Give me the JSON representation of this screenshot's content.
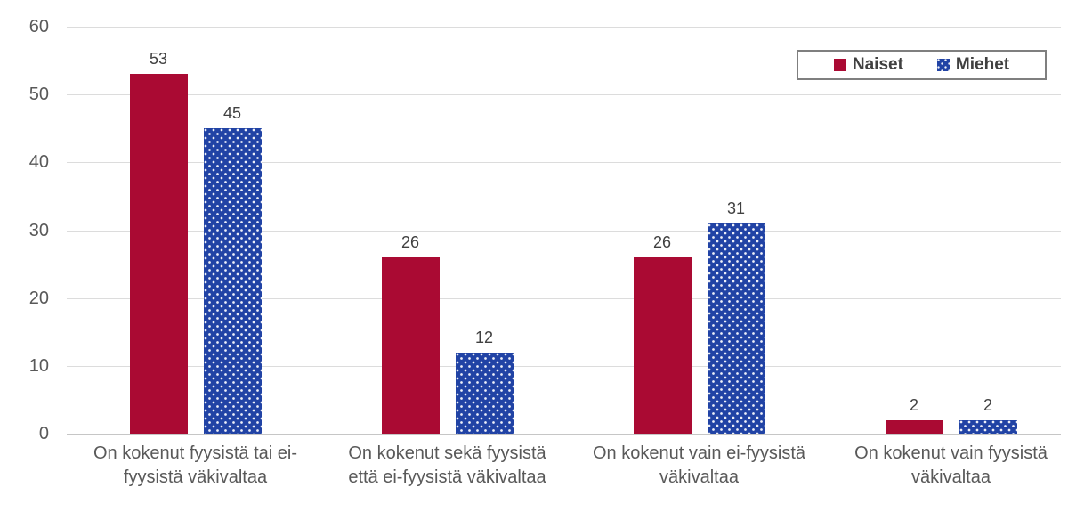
{
  "chart_data": {
    "type": "bar",
    "title": "",
    "xlabel": "",
    "ylabel": "",
    "ylim": [
      0,
      60
    ],
    "yticks": [
      0,
      10,
      20,
      30,
      40,
      50,
      60
    ],
    "grid": true,
    "legend_position": "top-right",
    "categories": [
      [
        "On kokenut fyysistä tai ei-",
        "fyysistä väkivaltaa"
      ],
      [
        "On kokenut sekä fyysistä",
        "että ei-fyysistä väkivaltaa"
      ],
      [
        "On kokenut vain ei-fyysistä",
        "väkivaltaa"
      ],
      [
        "On kokenut vain fyysistä",
        "väkivaltaa"
      ]
    ],
    "series": [
      {
        "name": "Naiset",
        "color": "#aa0a33",
        "pattern": "solid",
        "values": [
          53,
          26,
          26,
          2
        ]
      },
      {
        "name": "Miehet",
        "color": "#2143a5",
        "pattern": "dotted",
        "values": [
          45,
          12,
          31,
          2
        ]
      }
    ]
  },
  "colors": {
    "naiset": "#aa0a33",
    "miehet": "#2143a5",
    "gridline": "#dcdcdc",
    "axis_text": "#595959",
    "value_text": "#404040"
  }
}
